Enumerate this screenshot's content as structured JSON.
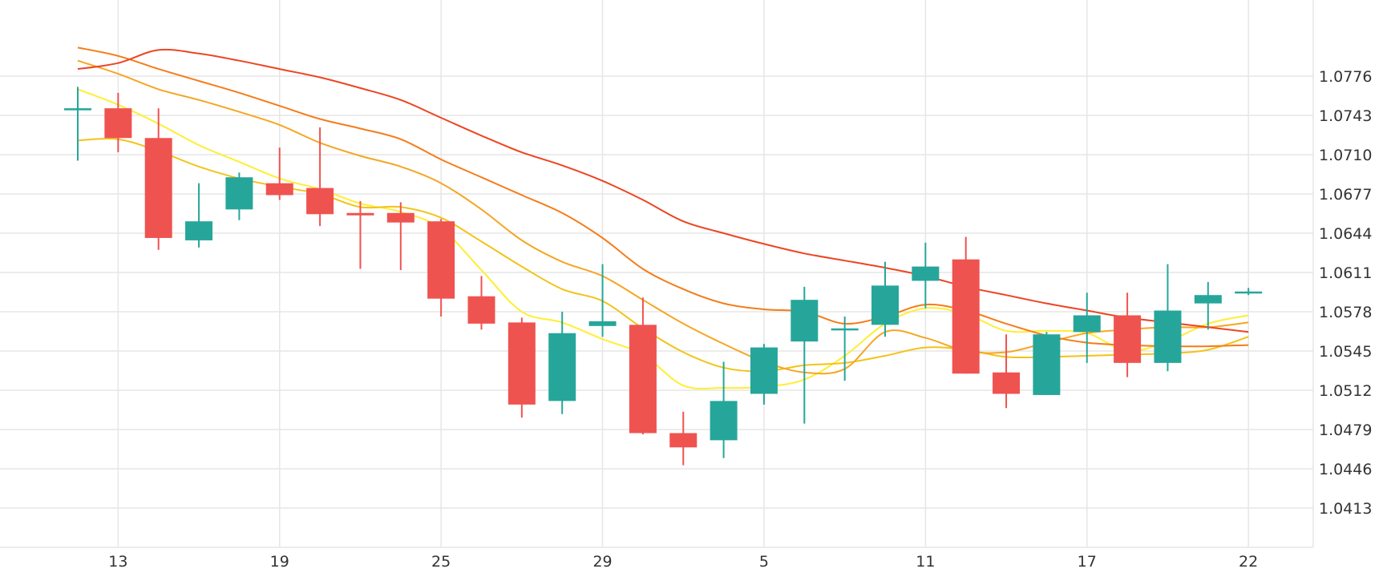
{
  "chart_data": {
    "type": "candlestick",
    "title": "",
    "xlabel": "",
    "ylabel": "",
    "grid": true,
    "legend": "none",
    "ylim": [
      1.038,
      1.084
    ],
    "x_tick_labels": [
      "13",
      "19",
      "25",
      "29",
      "5",
      "11",
      "17",
      "22"
    ],
    "y_tick_labels": [
      "1.0776",
      "1.0743",
      "1.0710",
      "1.0677",
      "1.0644",
      "1.0611",
      "1.0578",
      "1.0545",
      "1.0512",
      "1.0479",
      "1.0446",
      "1.0413"
    ],
    "colors": {
      "up": "#26a69a",
      "down": "#ef5350",
      "grid": "#e6e6e6",
      "axis_text": "#333333",
      "ma_lines": [
        "#ffee33",
        "#f2c318",
        "#f5a623",
        "#f57c1a",
        "#ee4422"
      ]
    },
    "candles": [
      {
        "i": 0,
        "open": 1.0749,
        "high": 1.0767,
        "low": 1.0705,
        "close": 1.0749
      },
      {
        "i": 1,
        "open": 1.0749,
        "high": 1.0762,
        "low": 1.0712,
        "close": 1.0724
      },
      {
        "i": 2,
        "open": 1.0724,
        "high": 1.0749,
        "low": 1.063,
        "close": 1.064
      },
      {
        "i": 3,
        "open": 1.0638,
        "high": 1.0686,
        "low": 1.0632,
        "close": 1.0654
      },
      {
        "i": 4,
        "open": 1.0664,
        "high": 1.0695,
        "low": 1.0655,
        "close": 1.0691
      },
      {
        "i": 5,
        "open": 1.0686,
        "high": 1.0716,
        "low": 1.0672,
        "close": 1.0676
      },
      {
        "i": 6,
        "open": 1.0682,
        "high": 1.0733,
        "low": 1.065,
        "close": 1.066
      },
      {
        "i": 7,
        "open": 1.0661,
        "high": 1.0671,
        "low": 1.0614,
        "close": 1.0659
      },
      {
        "i": 8,
        "open": 1.0661,
        "high": 1.067,
        "low": 1.0613,
        "close": 1.0653
      },
      {
        "i": 9,
        "open": 1.0654,
        "high": 1.0656,
        "low": 1.0574,
        "close": 1.0589
      },
      {
        "i": 10,
        "open": 1.0591,
        "high": 1.0608,
        "low": 1.0563,
        "close": 1.0568
      },
      {
        "i": 11,
        "open": 1.0569,
        "high": 1.0573,
        "low": 1.0489,
        "close": 1.05
      },
      {
        "i": 12,
        "open": 1.0503,
        "high": 1.0578,
        "low": 1.0492,
        "close": 1.056
      },
      {
        "i": 13,
        "open": 1.0566,
        "high": 1.0618,
        "low": 1.0557,
        "close": 1.057
      },
      {
        "i": 14,
        "open": 1.0567,
        "high": 1.059,
        "low": 1.0475,
        "close": 1.0476
      },
      {
        "i": 15,
        "open": 1.0476,
        "high": 1.0494,
        "low": 1.0449,
        "close": 1.0464
      },
      {
        "i": 16,
        "open": 1.047,
        "high": 1.0536,
        "low": 1.0455,
        "close": 1.0503
      },
      {
        "i": 17,
        "open": 1.0509,
        "high": 1.0551,
        "low": 1.05,
        "close": 1.0548
      },
      {
        "i": 18,
        "open": 1.0553,
        "high": 1.0599,
        "low": 1.0484,
        "close": 1.0588
      },
      {
        "i": 19,
        "open": 1.0564,
        "high": 1.0574,
        "low": 1.052,
        "close": 1.0564
      },
      {
        "i": 20,
        "open": 1.0567,
        "high": 1.062,
        "low": 1.0557,
        "close": 1.06
      },
      {
        "i": 21,
        "open": 1.0604,
        "high": 1.0636,
        "low": 1.0581,
        "close": 1.0616
      },
      {
        "i": 22,
        "open": 1.0622,
        "high": 1.0641,
        "low": 1.0526,
        "close": 1.0526
      },
      {
        "i": 23,
        "open": 1.0527,
        "high": 1.0559,
        "low": 1.0497,
        "close": 1.0509
      },
      {
        "i": 24,
        "open": 1.0508,
        "high": 1.0561,
        "low": 1.0508,
        "close": 1.0559
      },
      {
        "i": 25,
        "open": 1.0561,
        "high": 1.0594,
        "low": 1.0535,
        "close": 1.0575
      },
      {
        "i": 26,
        "open": 1.0575,
        "high": 1.0594,
        "low": 1.0523,
        "close": 1.0535
      },
      {
        "i": 27,
        "open": 1.0535,
        "high": 1.0618,
        "low": 1.0528,
        "close": 1.0579
      },
      {
        "i": 28,
        "open": 1.0585,
        "high": 1.0603,
        "low": 1.0563,
        "close": 1.0592
      },
      {
        "i": 29,
        "open": 1.0595,
        "high": 1.0598,
        "low": 1.0592,
        "close": 1.0595
      }
    ],
    "x_ticks": [
      {
        "label": "13",
        "i": 1
      },
      {
        "label": "19",
        "i": 5
      },
      {
        "label": "25",
        "i": 9
      },
      {
        "label": "29",
        "i": 13
      },
      {
        "label": "5",
        "i": 17
      },
      {
        "label": "11",
        "i": 21
      },
      {
        "label": "17",
        "i": 25
      },
      {
        "label": "22",
        "i": 29
      }
    ],
    "series": [
      {
        "line": 0,
        "points": [
          [
            0,
            1.0765
          ],
          [
            1,
            1.0752
          ],
          [
            2,
            1.0736
          ],
          [
            3,
            1.0718
          ],
          [
            4,
            1.0704
          ],
          [
            5,
            1.069
          ],
          [
            6,
            1.0681
          ],
          [
            7,
            1.0669
          ],
          [
            8,
            1.0662
          ],
          [
            9,
            1.0648
          ],
          [
            10,
            1.0613
          ],
          [
            11,
            1.0578
          ],
          [
            12,
            1.0569
          ],
          [
            13,
            1.0555
          ],
          [
            14,
            1.0542
          ],
          [
            15,
            1.0516
          ],
          [
            16,
            1.0514
          ],
          [
            17,
            1.0515
          ],
          [
            18,
            1.0521
          ],
          [
            19,
            1.0541
          ],
          [
            20,
            1.0568
          ],
          [
            21,
            1.0581
          ],
          [
            22,
            1.0576
          ],
          [
            23,
            1.0562
          ],
          [
            24,
            1.0562
          ],
          [
            25,
            1.056
          ],
          [
            26,
            1.0545
          ],
          [
            27,
            1.0553
          ],
          [
            28,
            1.0568
          ],
          [
            29,
            1.0575
          ]
        ]
      },
      {
        "line": 1,
        "points": [
          [
            0,
            1.0722
          ],
          [
            1,
            1.0723
          ],
          [
            2,
            1.0713
          ],
          [
            3,
            1.07
          ],
          [
            4,
            1.069
          ],
          [
            5,
            1.0683
          ],
          [
            6,
            1.0677
          ],
          [
            7,
            1.0666
          ],
          [
            8,
            1.0666
          ],
          [
            9,
            1.0657
          ],
          [
            10,
            1.0637
          ],
          [
            11,
            1.0616
          ],
          [
            12,
            1.0597
          ],
          [
            13,
            1.0587
          ],
          [
            14,
            1.0564
          ],
          [
            15,
            1.0544
          ],
          [
            16,
            1.0531
          ],
          [
            17,
            1.0528
          ],
          [
            18,
            1.0533
          ],
          [
            19,
            1.0535
          ],
          [
            20,
            1.0541
          ],
          [
            21,
            1.0548
          ],
          [
            22,
            1.0546
          ],
          [
            23,
            1.054
          ],
          [
            24,
            1.054
          ],
          [
            25,
            1.0541
          ],
          [
            26,
            1.0542
          ],
          [
            27,
            1.0543
          ],
          [
            28,
            1.0546
          ],
          [
            29,
            1.0557
          ]
        ]
      },
      {
        "line": 2,
        "points": [
          [
            0,
            1.0789
          ],
          [
            1,
            1.0778
          ],
          [
            2,
            1.0765
          ],
          [
            3,
            1.0756
          ],
          [
            4,
            1.0746
          ],
          [
            5,
            1.0735
          ],
          [
            6,
            1.072
          ],
          [
            7,
            1.0709
          ],
          [
            8,
            1.07
          ],
          [
            9,
            1.0686
          ],
          [
            10,
            1.0664
          ],
          [
            11,
            1.0638
          ],
          [
            12,
            1.062
          ],
          [
            13,
            1.0608
          ],
          [
            14,
            1.0588
          ],
          [
            15,
            1.0568
          ],
          [
            16,
            1.0551
          ],
          [
            17,
            1.0536
          ],
          [
            18,
            1.0527
          ],
          [
            19,
            1.053
          ],
          [
            20,
            1.0561
          ],
          [
            21,
            1.0556
          ],
          [
            22,
            1.0545
          ],
          [
            23,
            1.0544
          ],
          [
            24,
            1.0552
          ],
          [
            25,
            1.056
          ],
          [
            26,
            1.0563
          ],
          [
            27,
            1.0565
          ],
          [
            28,
            1.0565
          ],
          [
            29,
            1.0569
          ]
        ]
      },
      {
        "line": 3,
        "points": [
          [
            0,
            1.08
          ],
          [
            1,
            1.0793
          ],
          [
            2,
            1.0782
          ],
          [
            3,
            1.0772
          ],
          [
            4,
            1.0762
          ],
          [
            5,
            1.0751
          ],
          [
            6,
            1.074
          ],
          [
            7,
            1.0732
          ],
          [
            8,
            1.0723
          ],
          [
            9,
            1.0706
          ],
          [
            10,
            1.0691
          ],
          [
            11,
            1.0676
          ],
          [
            12,
            1.0661
          ],
          [
            13,
            1.064
          ],
          [
            14,
            1.0614
          ],
          [
            15,
            1.0597
          ],
          [
            16,
            1.0585
          ],
          [
            17,
            1.058
          ],
          [
            18,
            1.0578
          ],
          [
            19,
            1.0568
          ],
          [
            20,
            1.0574
          ],
          [
            21,
            1.0584
          ],
          [
            22,
            1.0579
          ],
          [
            23,
            1.0568
          ],
          [
            24,
            1.0558
          ],
          [
            25,
            1.0552
          ],
          [
            26,
            1.055
          ],
          [
            27,
            1.0549
          ],
          [
            28,
            1.0549
          ],
          [
            29,
            1.055
          ]
        ]
      },
      {
        "line": 4,
        "points": [
          [
            0,
            1.0782
          ],
          [
            1,
            1.0787
          ],
          [
            2,
            1.0798
          ],
          [
            3,
            1.0795
          ],
          [
            4,
            1.0789
          ],
          [
            5,
            1.0782
          ],
          [
            6,
            1.0775
          ],
          [
            7,
            1.0766
          ],
          [
            8,
            1.0756
          ],
          [
            9,
            1.0741
          ],
          [
            10,
            1.0726
          ],
          [
            11,
            1.0712
          ],
          [
            12,
            1.0701
          ],
          [
            13,
            1.0688
          ],
          [
            14,
            1.0672
          ],
          [
            15,
            1.0654
          ],
          [
            16,
            1.0644
          ],
          [
            17,
            1.0635
          ],
          [
            18,
            1.0627
          ],
          [
            19,
            1.0621
          ],
          [
            20,
            1.0615
          ],
          [
            21,
            1.0608
          ],
          [
            22,
            1.0599
          ],
          [
            23,
            1.0592
          ],
          [
            24,
            1.0585
          ],
          [
            25,
            1.0579
          ],
          [
            26,
            1.0573
          ],
          [
            27,
            1.0569
          ],
          [
            28,
            1.0565
          ],
          [
            29,
            1.0561
          ]
        ]
      }
    ]
  }
}
